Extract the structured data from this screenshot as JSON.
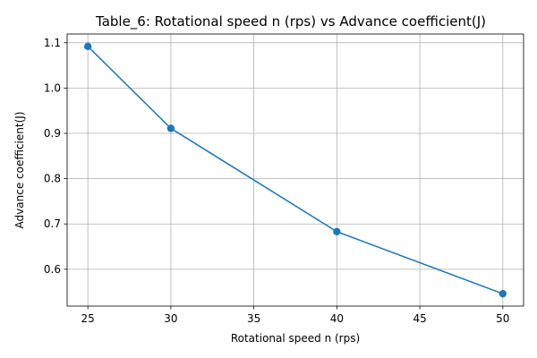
{
  "chart_data": {
    "type": "line",
    "title": "Table_6: Rotational  speed    n (rps) vs Advance  coefficient(J)",
    "xlabel": "Rotational  speed    n (rps)",
    "ylabel": "Advance  coefficient(J)",
    "x": [
      25,
      30,
      40,
      50
    ],
    "series": [
      {
        "values": [
          1.092,
          0.911,
          0.683,
          0.546
        ]
      }
    ],
    "xlim": [
      23.75,
      51.25
    ],
    "ylim": [
      0.5187,
      1.1193
    ],
    "xticks": [
      25,
      30,
      35,
      40,
      45,
      50
    ],
    "yticks": [
      0.6,
      0.7,
      0.8,
      0.9,
      1.0,
      1.1
    ],
    "xtick_labels": [
      "25",
      "30",
      "35",
      "40",
      "45",
      "50"
    ],
    "ytick_labels": [
      "0.6",
      "0.7",
      "0.8",
      "0.9",
      "1.0",
      "1.1"
    ],
    "grid": true,
    "legend": "none",
    "line_color": "#1f77b4",
    "marker": "circle"
  }
}
